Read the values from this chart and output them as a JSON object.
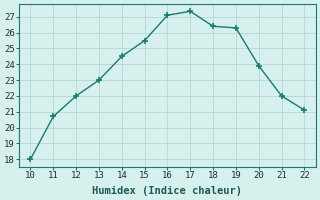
{
  "x": [
    10,
    11,
    12,
    13,
    14,
    15,
    16,
    17,
    18,
    19,
    20,
    21,
    22
  ],
  "y": [
    18.0,
    20.7,
    22.0,
    23.0,
    24.5,
    25.5,
    27.1,
    27.35,
    26.4,
    26.3,
    23.9,
    22.0,
    21.1
  ],
  "xlabel": "Humidex (Indice chaleur)",
  "xlim": [
    9.5,
    22.5
  ],
  "ylim": [
    17.5,
    27.8
  ],
  "xticks": [
    10,
    11,
    12,
    13,
    14,
    15,
    16,
    17,
    18,
    19,
    20,
    21,
    22
  ],
  "yticks": [
    18,
    19,
    20,
    21,
    22,
    23,
    24,
    25,
    26,
    27
  ],
  "line_color": "#1a7a6e",
  "marker_color": "#1a7a6e",
  "bg_color": "#d6f0ee",
  "grid_color": "#b8d8d4",
  "label_fontsize": 7.5,
  "tick_fontsize": 6.5
}
